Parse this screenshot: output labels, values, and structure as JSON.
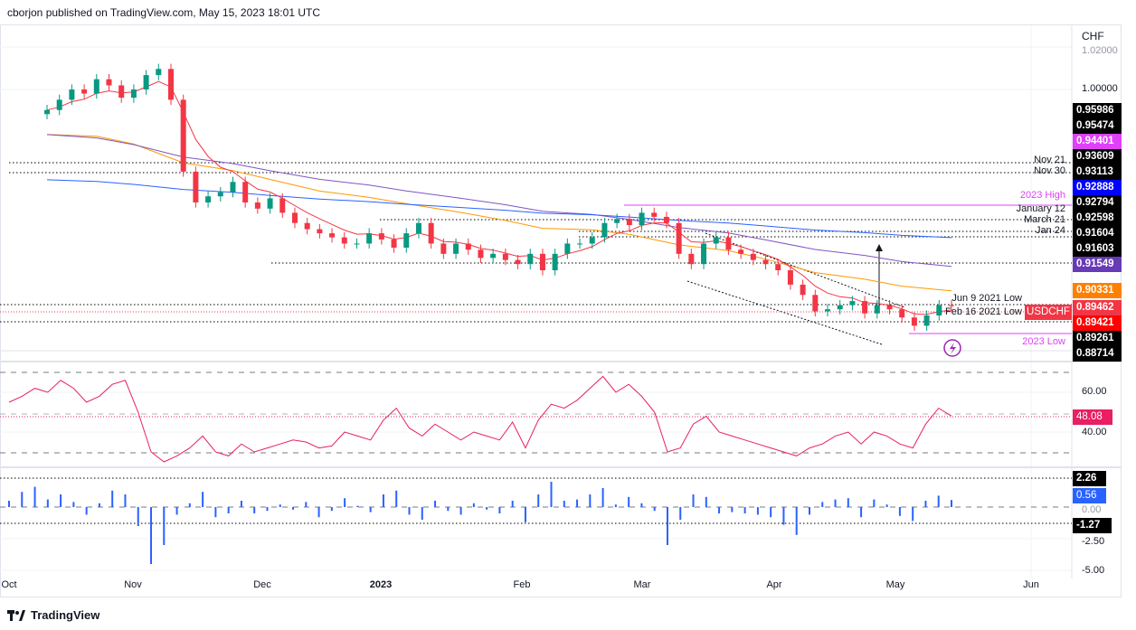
{
  "header": {
    "text": "cborjon published on TradingView.com, May 15, 2023 18:01 UTC"
  },
  "footer": {
    "brand": "TradingView"
  },
  "colors": {
    "up": "#089981",
    "down": "#f23645",
    "ema_fast": "#f23645",
    "ema_mid": "#ff9800",
    "ma_purple": "#7e57c2",
    "ma_blue": "#2962ff",
    "rsi": "#e91e63",
    "hist": "#2962ff",
    "level_pink": "#e040fb"
  },
  "chart_data": [
    {
      "type": "candlestick",
      "symbol": "USDCHF",
      "currency": "CHF",
      "date_range": [
        "2022-10-10",
        "2023-05-15"
      ],
      "closes": [
        0.99,
        0.995,
        1.0,
        0.998,
        1.005,
        1.002,
        0.996,
        1.0,
        1.007,
        1.01,
        0.995,
        0.96,
        0.945,
        0.948,
        0.95,
        0.955,
        0.945,
        0.942,
        0.947,
        0.94,
        0.935,
        0.932,
        0.93,
        0.928,
        0.925,
        0.925,
        0.93,
        0.927,
        0.923,
        0.93,
        0.935,
        0.925,
        0.92,
        0.925,
        0.922,
        0.918,
        0.92,
        0.917,
        0.915,
        0.92,
        0.912,
        0.92,
        0.925,
        0.925,
        0.928,
        0.935,
        0.937,
        0.934,
        0.94,
        0.938,
        0.935,
        0.92,
        0.915,
        0.925,
        0.928,
        0.922,
        0.92,
        0.917,
        0.915,
        0.912,
        0.905,
        0.9,
        0.892,
        0.893,
        0.895,
        0.897,
        0.891,
        0.895,
        0.893,
        0.889,
        0.885,
        0.89,
        0.895,
        0.8946
      ],
      "moving_averages": [
        {
          "color": "#ff9800",
          "start": 0.976,
          "end": 0.9033
        },
        {
          "color": "#7e57c2",
          "start": 0.977,
          "end": 0.9155
        },
        {
          "color": "#2962ff",
          "start": 0.955,
          "end": 0.9289
        }
      ],
      "y_ticks": [
        "1.02000",
        "1.00000"
      ],
      "price_labels": [
        {
          "value": "0.95986",
          "color": "#000000"
        },
        {
          "value": "0.95474",
          "color": "#000000"
        },
        {
          "value": "0.94401",
          "color": "#e040fb"
        },
        {
          "value": "0.93609",
          "color": "#000000"
        },
        {
          "value": "0.93113",
          "color": "#000000"
        },
        {
          "value": "0.92888",
          "color": "#0000ff"
        },
        {
          "value": "0.92794",
          "color": "#000000"
        },
        {
          "value": "0.92598",
          "color": "#000000"
        },
        {
          "value": "0.91604",
          "color": "#000000"
        },
        {
          "value": "0.91603",
          "color": "#000000"
        },
        {
          "value": "0.91549",
          "color": "#673ab7"
        },
        {
          "value": "0.90331",
          "color": "#ff8000"
        },
        {
          "value": "0.89462",
          "color": "#f23645"
        },
        {
          "value": "0.89421",
          "color": "#ff0000"
        },
        {
          "value": "0.89261",
          "color": "#000000"
        },
        {
          "value": "0.88714",
          "color": "#000000"
        }
      ],
      "level_tags": [
        "Nov 21",
        "Nov 30",
        "2023 High",
        "January 12",
        "March 21",
        "Jan 24",
        "Jun 9 2021 Low",
        "Feb 16 2021 Low",
        "2023 Low"
      ],
      "x_ticks": [
        "Oct",
        "Nov",
        "Dec",
        "2023",
        "Feb",
        "Mar",
        "Apr",
        "May",
        "Jun"
      ]
    },
    {
      "type": "line",
      "indicator": "RSI",
      "last_value": "48.08",
      "y_ticks": [
        "60.00",
        "40.00"
      ],
      "values": [
        55,
        58,
        62,
        60,
        66,
        62,
        55,
        58,
        64,
        66,
        50,
        30,
        25,
        28,
        32,
        38,
        30,
        28,
        34,
        30,
        32,
        34,
        36,
        35,
        32,
        33,
        40,
        38,
        36,
        46,
        52,
        42,
        38,
        44,
        40,
        36,
        40,
        38,
        36,
        45,
        32,
        46,
        54,
        52,
        56,
        62,
        68,
        60,
        64,
        58,
        50,
        30,
        32,
        44,
        48,
        40,
        38,
        36,
        34,
        32,
        30,
        28,
        32,
        34,
        38,
        40,
        34,
        40,
        38,
        34,
        32,
        44,
        52,
        48.08
      ]
    },
    {
      "type": "bar",
      "indicator": "MACD histogram",
      "last_value": "0.56",
      "levels": [
        "2.26",
        "-1.27"
      ],
      "y_ticks": [
        "0.00",
        "-2.50",
        "-5.00"
      ],
      "values": [
        0.5,
        1.2,
        1.6,
        0.6,
        1.0,
        0.4,
        -0.6,
        0.3,
        1.3,
        1.0,
        -1.5,
        -4.5,
        -3.0,
        -0.6,
        0.3,
        1.2,
        -0.8,
        -0.5,
        0.5,
        -0.5,
        -0.3,
        0.2,
        -0.2,
        0.4,
        -0.8,
        -0.3,
        0.7,
        0.1,
        -0.4,
        1.0,
        1.3,
        -0.6,
        -1.0,
        0.5,
        -0.3,
        -0.6,
        0.3,
        -0.2,
        -0.5,
        0.5,
        -1.2,
        1.0,
        2.0,
        0.5,
        0.6,
        1.0,
        1.5,
        0.2,
        0.8,
        0.3,
        -0.3,
        -3.0,
        -1.0,
        1.0,
        0.8,
        -0.5,
        -0.4,
        -0.5,
        -0.6,
        -0.8,
        -1.4,
        -2.2,
        -0.6,
        0.4,
        0.6,
        0.7,
        -0.8,
        0.6,
        0.2,
        -0.7,
        -1.1,
        0.5,
        0.9,
        0.56
      ]
    }
  ]
}
